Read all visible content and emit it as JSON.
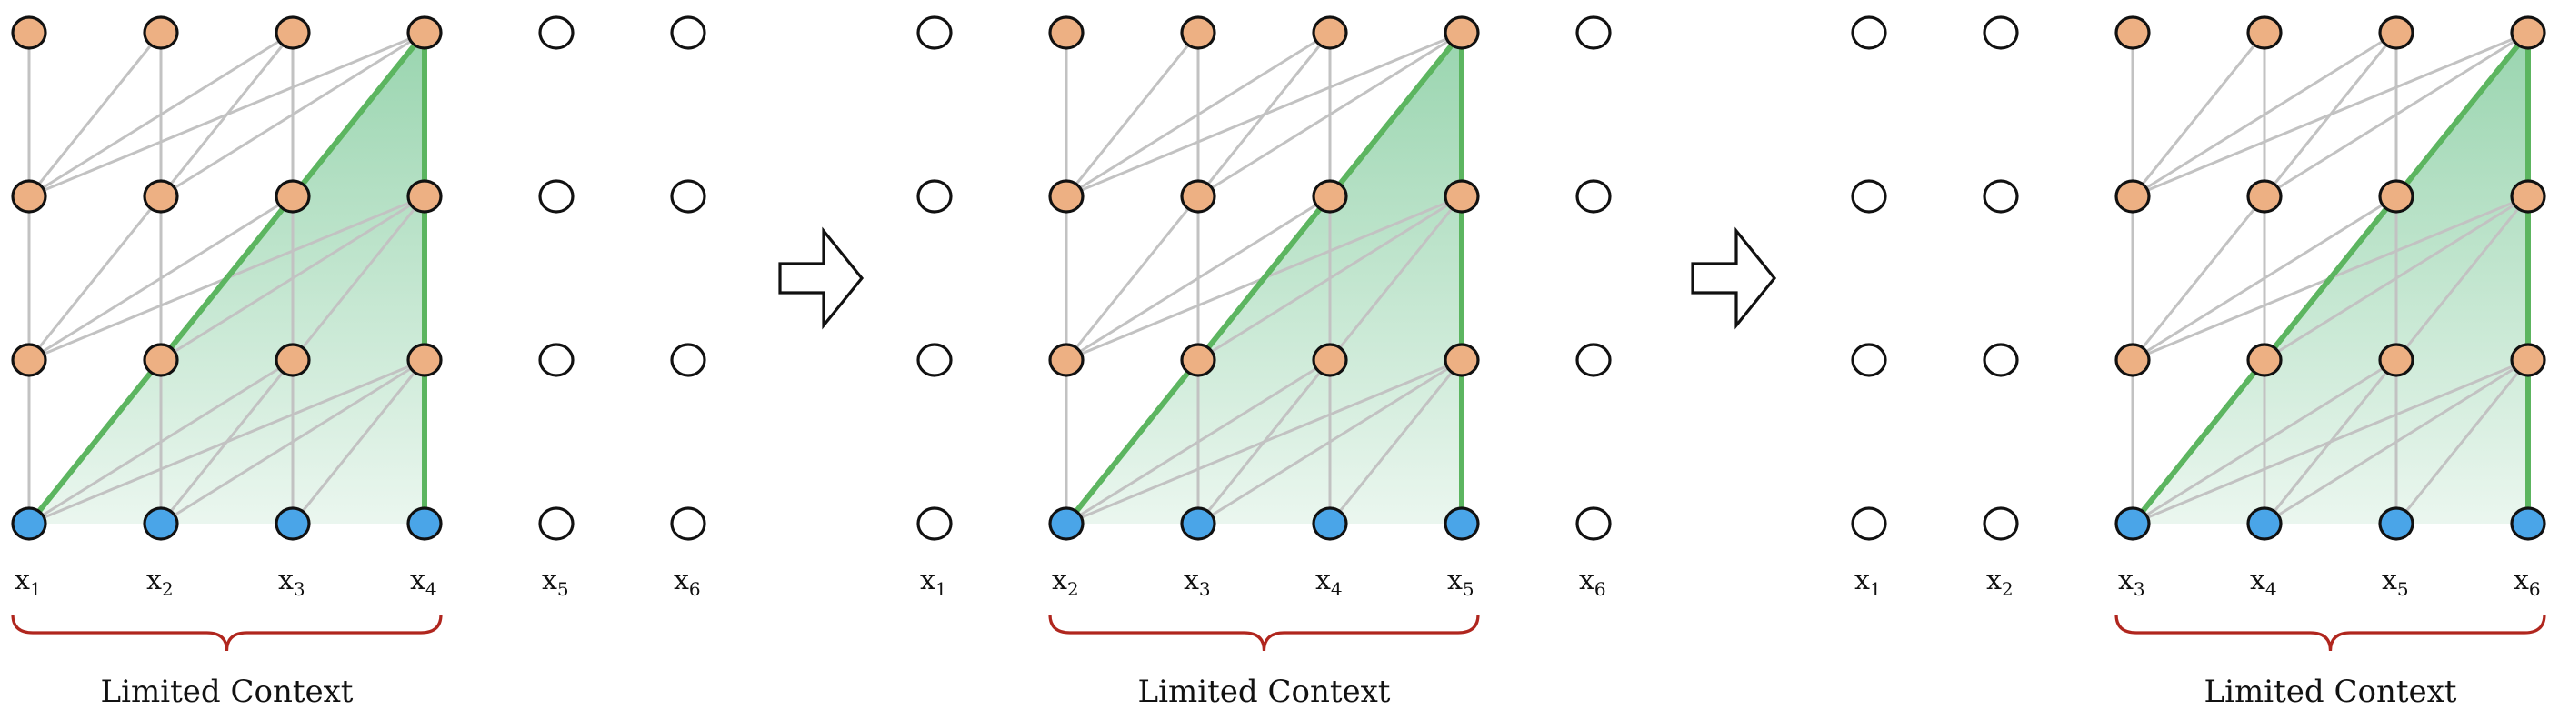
{
  "colors": {
    "hidden_node": "#edb083",
    "input_node": "#4aa5e8",
    "empty_node": "#ffffff",
    "edge": "#c2c2c2",
    "highlight": "#5cb560",
    "brace": "#b0261e"
  },
  "panels": [
    {
      "x_labels": [
        {
          "base": "x",
          "sub": "1"
        },
        {
          "base": "x",
          "sub": "2"
        },
        {
          "base": "x",
          "sub": "3"
        },
        {
          "base": "x",
          "sub": "4"
        },
        {
          "base": "x",
          "sub": "5"
        },
        {
          "base": "x",
          "sub": "6"
        }
      ],
      "window_start": 0,
      "context_label": "Limited Context"
    },
    {
      "x_labels": [
        {
          "base": "x",
          "sub": "1"
        },
        {
          "base": "x",
          "sub": "2"
        },
        {
          "base": "x",
          "sub": "3"
        },
        {
          "base": "x",
          "sub": "4"
        },
        {
          "base": "x",
          "sub": "5"
        },
        {
          "base": "x",
          "sub": "6"
        }
      ],
      "window_start": 1,
      "context_label": "Limited Context"
    },
    {
      "x_labels": [
        {
          "base": "x",
          "sub": "1"
        },
        {
          "base": "x",
          "sub": "2"
        },
        {
          "base": "x",
          "sub": "3"
        },
        {
          "base": "x",
          "sub": "4"
        },
        {
          "base": "x",
          "sub": "5"
        },
        {
          "base": "x",
          "sub": "6"
        }
      ],
      "window_start": 2,
      "context_label": "Limited Context"
    }
  ],
  "arrow_icon": "right-arrow-icon"
}
